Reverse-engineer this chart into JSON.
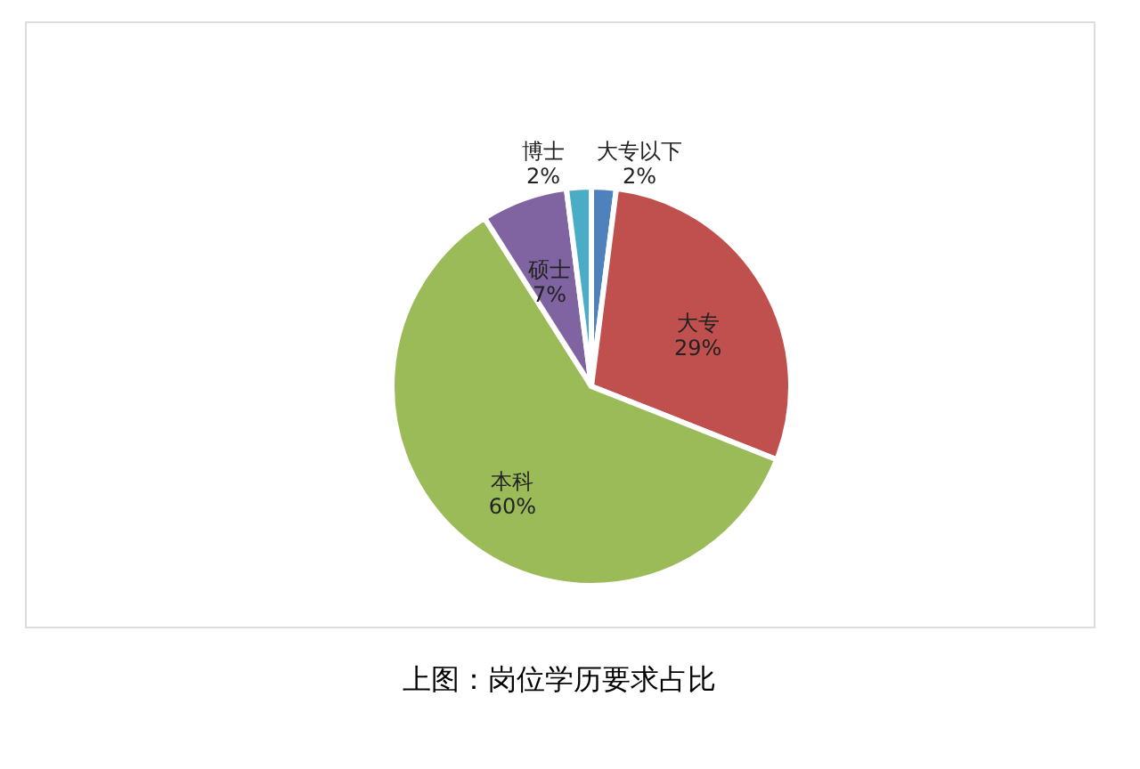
{
  "chart_data": {
    "type": "pie",
    "categories": [
      "大专以下",
      "大专",
      "本科",
      "硕士",
      "博士"
    ],
    "values": [
      2,
      29,
      60,
      7,
      2
    ],
    "value_labels": [
      "2%",
      "29%",
      "60%",
      "7%",
      "2%"
    ],
    "colors": [
      "#4f81bd",
      "#c0504d",
      "#9bbb59",
      "#8064a2",
      "#4bacc6"
    ],
    "annotations": [
      "上图：岗位学历要求占比"
    ]
  }
}
